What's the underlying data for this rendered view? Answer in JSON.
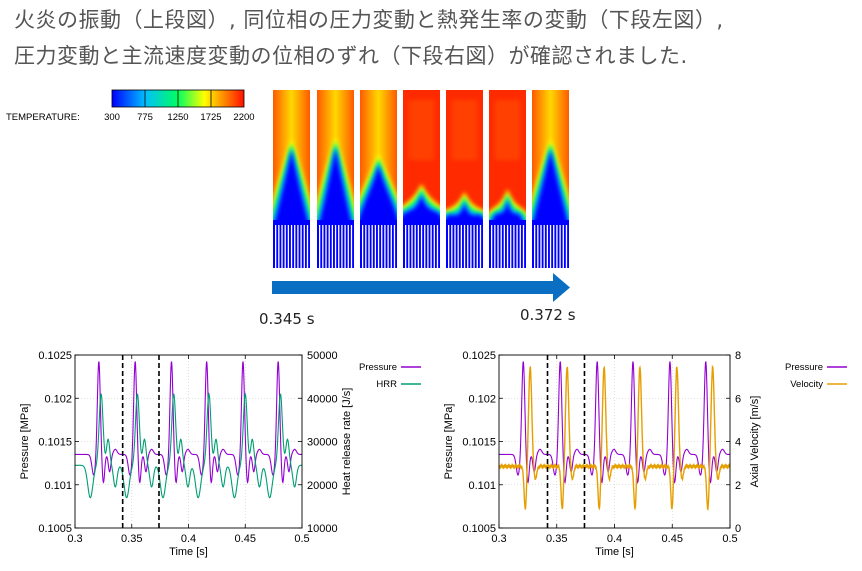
{
  "caption": {
    "line1": "火炎の振動（上段図）, 同位相の圧力変動と熱発生率の変動（下段左図）,",
    "line2": "圧力変動と主流速度変動の位相のずれ（下段右図）が確認されました."
  },
  "colorbar": {
    "label": "TEMPERATURE:",
    "ticks": [
      "300",
      "775",
      "1250",
      "1725",
      "2200"
    ]
  },
  "arrow": {
    "start_label": "0.345 s",
    "end_label": "0.372 s"
  },
  "chart_data": [
    {
      "type": "line",
      "xlabel": "Time [s]",
      "ylabel": "Pressure [MPa]",
      "y2label": "Heat release rate [J/s]",
      "xlim": [
        0.3,
        0.5
      ],
      "ylim": [
        0.1005,
        0.1025
      ],
      "y2lim": [
        10000,
        50000
      ],
      "x_ticks": [
        "0.3",
        "0.35",
        "0.4",
        "0.45",
        "0.5"
      ],
      "y_ticks": [
        "0.1005",
        "0.101",
        "0.1015",
        "0.102",
        "0.1025"
      ],
      "y2_ticks": [
        "10000",
        "20000",
        "30000",
        "40000",
        "50000"
      ],
      "vlines": [
        0.342,
        0.374
      ],
      "grid": true,
      "legend_position": "top-right outside",
      "series": [
        {
          "name": "Pressure",
          "color": "#9400d3",
          "axis": "left",
          "peaks": [
            0.321,
            0.353,
            0.385,
            0.416,
            0.448,
            0.479
          ]
        },
        {
          "name": "HRR",
          "color": "#009e73",
          "axis": "right",
          "peaks": [
            0.323,
            0.355,
            0.387,
            0.418,
            0.45,
            0.481
          ]
        }
      ]
    },
    {
      "type": "line",
      "xlabel": "Time [s]",
      "ylabel": "Pressure [MPa]",
      "y2label": "Axial Velocity [m/s]",
      "xlim": [
        0.3,
        0.5
      ],
      "ylim": [
        0.1005,
        0.1025
      ],
      "y2lim": [
        0,
        8
      ],
      "x_ticks": [
        "0.3",
        "0.35",
        "0.4",
        "0.45",
        "0.5"
      ],
      "y_ticks": [
        "0.1005",
        "0.101",
        "0.1015",
        "0.102",
        "0.1025"
      ],
      "y2_ticks": [
        "0",
        "2",
        "4",
        "6",
        "8"
      ],
      "vlines": [
        0.342,
        0.374
      ],
      "grid": true,
      "legend_position": "top-right outside",
      "series": [
        {
          "name": "Pressure",
          "color": "#9400d3",
          "axis": "left",
          "peaks": [
            0.321,
            0.353,
            0.385,
            0.416,
            0.448,
            0.479
          ]
        },
        {
          "name": "Velocity",
          "color": "#e69f00",
          "axis": "right",
          "peaks": [
            0.327,
            0.359,
            0.391,
            0.422,
            0.454,
            0.485
          ]
        }
      ]
    }
  ],
  "colors": {
    "pressure": "#9400d3",
    "hrr": "#009e73",
    "velocity": "#e69f00",
    "arrow": "#0a6fc2"
  }
}
